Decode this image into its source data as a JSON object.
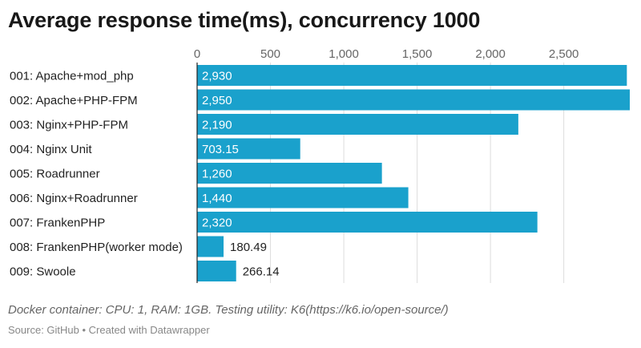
{
  "title": "Average response time(ms), concurrency 1000",
  "note": "Docker container: CPU: 1, RAM: 1GB. Testing utility: K6(https://k6.io/open-source/)",
  "source": "Source: GitHub • Created with Datawrapper",
  "colors": {
    "bar": "#1aa1cc",
    "grid": "#dddddd",
    "axis": "#222222",
    "label_inside": "#ffffff",
    "label_outside": "#222222"
  },
  "chart_data": {
    "type": "bar",
    "orientation": "horizontal",
    "categories": [
      "001: Apache+mod_php",
      "002: Apache+PHP-FPM",
      "003: Nginx+PHP-FPM",
      "004: Nginx Unit",
      "005: Roadrunner",
      "006: Nginx+Roadrunner",
      "007: FrankenPHP",
      "008: FrankenPHP(worker mode)",
      "009: Swoole"
    ],
    "values": [
      2930,
      2950,
      2190,
      703.15,
      1260,
      1440,
      2320,
      180.49,
      266.14
    ],
    "value_labels": [
      "2,930",
      "2,950",
      "2,190",
      "703.15",
      "1,260",
      "1,440",
      "2,320",
      "180.49",
      "266.14"
    ],
    "xticks": [
      0,
      500,
      1000,
      1500,
      2000,
      2500
    ],
    "xtick_labels": [
      "0",
      "500",
      "1,000",
      "1,500",
      "2,000",
      "2,500"
    ],
    "xlim": [
      0,
      2950
    ],
    "xaxis_position": "top",
    "grid": true
  }
}
